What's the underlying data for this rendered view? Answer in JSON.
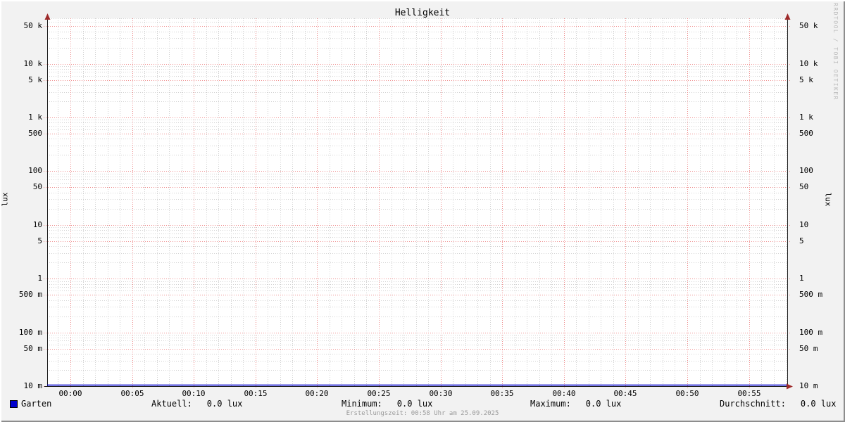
{
  "watermark": "RRDTOOL / TOBI OETIKER",
  "footer": "Erstellungszeit: 00:58 Uhr am 25.09.2025",
  "chart_data": {
    "type": "line",
    "title": "Helligkeit",
    "ylabel": "lux",
    "ylabel_right": "lux",
    "y_scale": "log",
    "ylim": [
      0.01,
      70000
    ],
    "grid": true,
    "legend_position": "bottom",
    "x_axis": {
      "start": "00:00",
      "end": "00:58",
      "major_step_minutes": 5,
      "minor_step_minutes": 1
    },
    "x_ticks": [
      {
        "minute": 0,
        "label": "00:00"
      },
      {
        "minute": 5,
        "label": "00:05"
      },
      {
        "minute": 10,
        "label": "00:10"
      },
      {
        "minute": 15,
        "label": "00:15"
      },
      {
        "minute": 20,
        "label": "00:20"
      },
      {
        "minute": 25,
        "label": "00:25"
      },
      {
        "minute": 30,
        "label": "00:30"
      },
      {
        "minute": 35,
        "label": "00:35"
      },
      {
        "minute": 40,
        "label": "00:40"
      },
      {
        "minute": 45,
        "label": "00:45"
      },
      {
        "minute": 50,
        "label": "00:50"
      },
      {
        "minute": 55,
        "label": "00:55"
      }
    ],
    "y_ticks": [
      {
        "value": 0.01,
        "label": "10 m"
      },
      {
        "value": 0.05,
        "label": "50 m"
      },
      {
        "value": 0.1,
        "label": "100 m"
      },
      {
        "value": 0.5,
        "label": "500 m"
      },
      {
        "value": 1,
        "label": "1"
      },
      {
        "value": 5,
        "label": "5"
      },
      {
        "value": 10,
        "label": "10"
      },
      {
        "value": 50,
        "label": "50"
      },
      {
        "value": 100,
        "label": "100"
      },
      {
        "value": 500,
        "label": "500"
      },
      {
        "value": 1000,
        "label": "1 k"
      },
      {
        "value": 5000,
        "label": "5 k"
      },
      {
        "value": 10000,
        "label": "10 k"
      },
      {
        "value": 50000,
        "label": "50 k"
      }
    ],
    "y_minor_multipliers": [
      2,
      3,
      4,
      6,
      7,
      8,
      9
    ],
    "series": [
      {
        "name": "Garten",
        "color": "#0000cc",
        "unit": "lux",
        "constant_value": 0.0,
        "points": [
          {
            "x": "00:00",
            "y": 0.0
          },
          {
            "x": "00:58",
            "y": 0.0
          }
        ]
      }
    ],
    "stats": [
      {
        "label": "Aktuell:",
        "value": "0.0 lux"
      },
      {
        "label": "Minimum:",
        "value": "0.0 lux"
      },
      {
        "label": "Maximum:",
        "value": "0.0 lux"
      },
      {
        "label": "Durchschnitt:",
        "value": "0.0 lux"
      }
    ],
    "colors": {
      "background": "#f2f2f2",
      "canvas": "#ffffff",
      "major_grid": "#ef8f8f",
      "minor_grid": "#d2d2d2",
      "axis": "#1a1a1a",
      "arrow": "#9e2a2a",
      "series": "#0000cc",
      "text": "#000000",
      "footer_text": "#9a9a9a",
      "watermark_text": "#bcbcbc"
    }
  }
}
